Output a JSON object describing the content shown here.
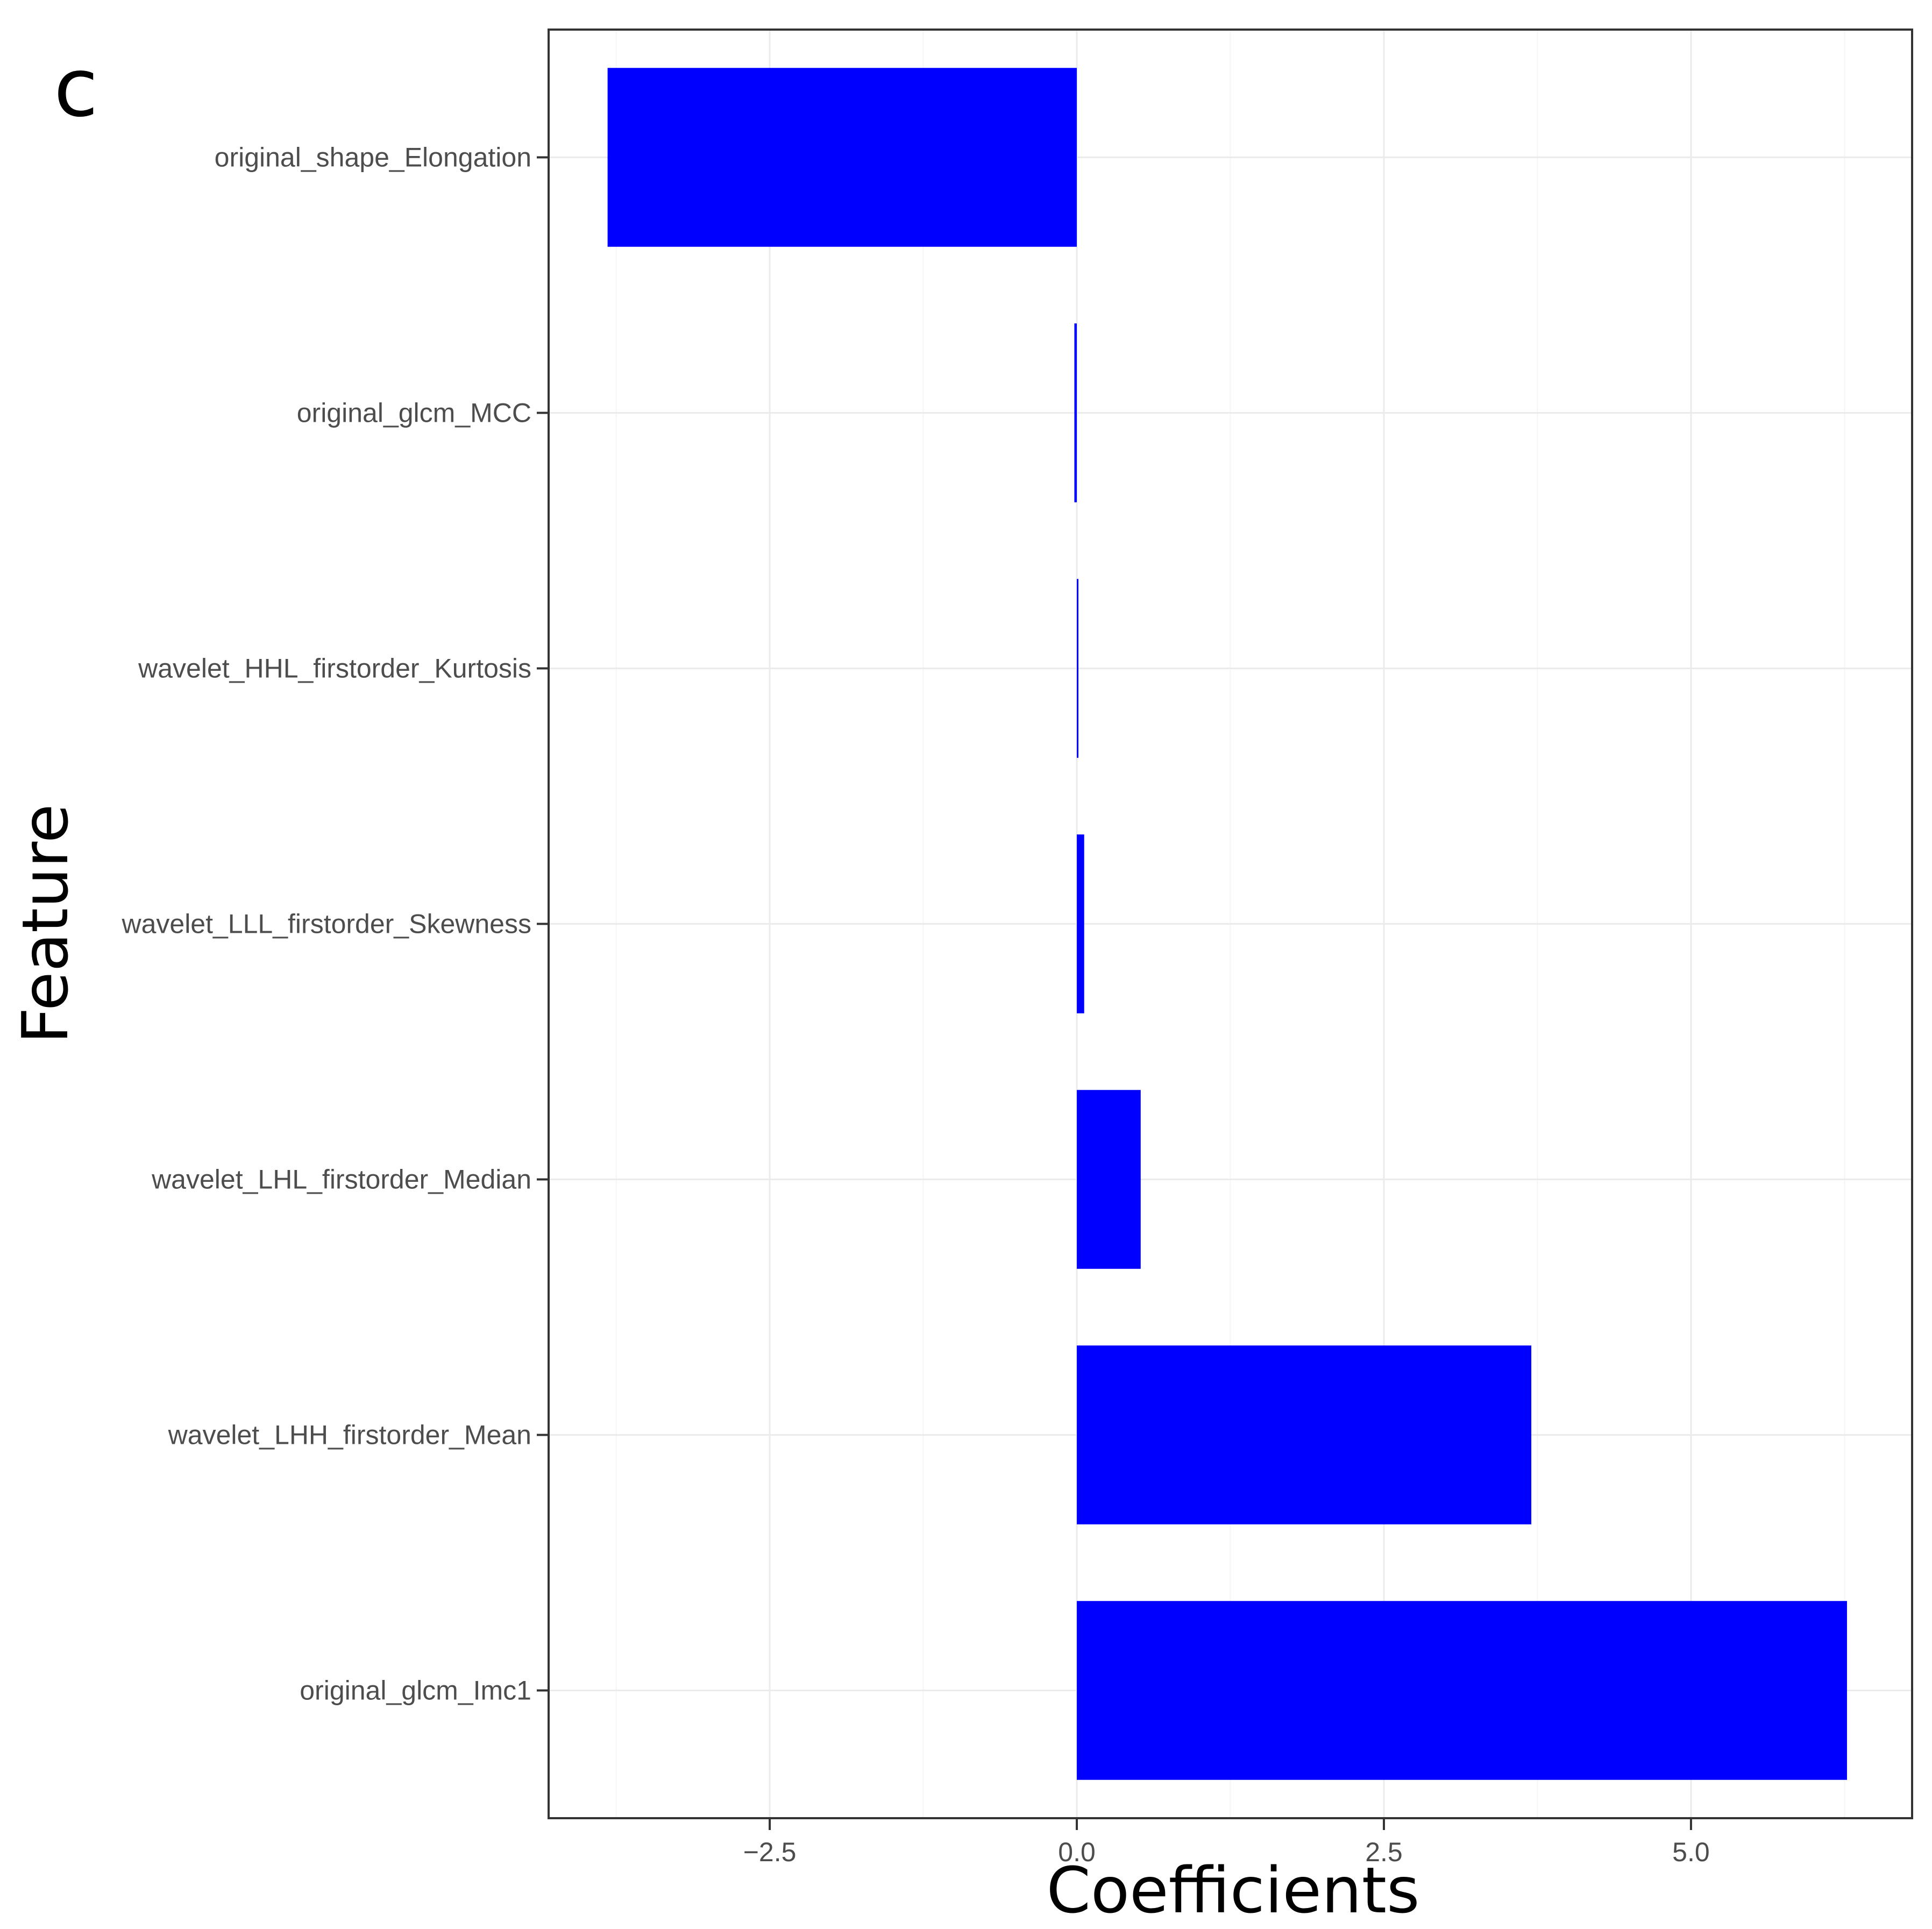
{
  "panel_label": "c",
  "colors": {
    "bar": "#0000ff",
    "grid_major": "#ebebeb",
    "grid_minor": "#f5f5f5",
    "panel_border": "#333333",
    "tick_text": "#4d4d4d",
    "title_text": "#000000"
  },
  "chart_data": {
    "type": "bar",
    "orientation": "horizontal",
    "title": "",
    "xlabel": "Coefficients",
    "ylabel": "Feature",
    "xlim": [
      -4.3,
      6.8
    ],
    "x_ticks": [
      -2.5,
      0.0,
      2.5,
      5.0
    ],
    "x_tick_labels": [
      "−2.5",
      "0.0",
      "2.5",
      "5.0"
    ],
    "grid": true,
    "categories": [
      "original_shape_Elongation",
      "original_glcm_MCC",
      "wavelet_HHL_firstorder_Kurtosis",
      "wavelet_LLL_firstorder_Skewness",
      "wavelet_LHL_firstorder_Median",
      "wavelet_LHH_firstorder_Mean",
      "original_glcm_Imc1"
    ],
    "values": [
      -3.82,
      -0.02,
      0.01,
      0.06,
      0.52,
      3.7,
      6.27
    ]
  }
}
